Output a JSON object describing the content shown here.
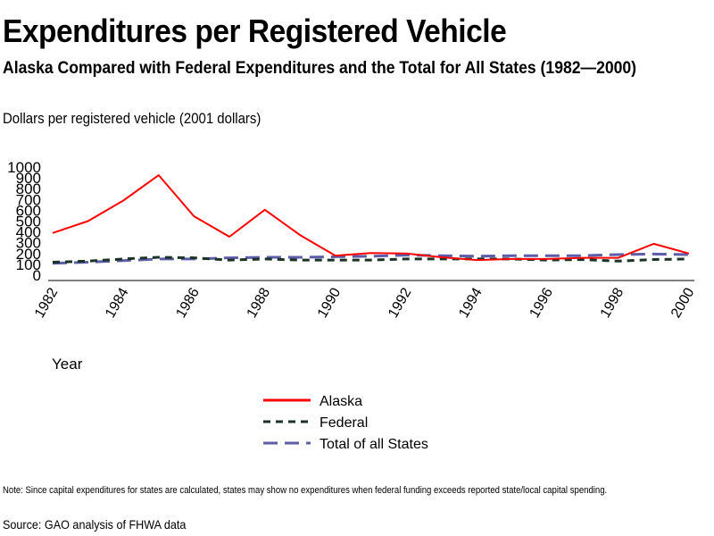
{
  "title": "Expenditures per Registered Vehicle",
  "subtitle": "Alaska Compared with Federal Expenditures and the Total for All States (1982—2000)",
  "y_axis_caption": "Dollars per registered vehicle (2001 dollars)",
  "x_axis_caption": "Year",
  "note": "Note:  Since capital expenditures for states are calculated, states may show no expenditures when federal funding exceeds reported state/local capital spending.",
  "source": "Source: GAO analysis of FHWA data",
  "chart_data": {
    "type": "line",
    "title": "Expenditures per Registered Vehicle",
    "xlabel": "Year",
    "ylabel": "Dollars per registered vehicle (2001 dollars)",
    "x": [
      1982,
      1983,
      1984,
      1985,
      1986,
      1987,
      1988,
      1989,
      1990,
      1991,
      1992,
      1993,
      1994,
      1995,
      1996,
      1997,
      1998,
      1999,
      2000
    ],
    "xticks": [
      "1982",
      "1984",
      "1986",
      "1988",
      "1990",
      "1992",
      "1994",
      "1996",
      "1998",
      "2000"
    ],
    "yticks": [
      "0",
      "100",
      "200",
      "300",
      "400",
      "500",
      "600",
      "700",
      "800",
      "900",
      "1000"
    ],
    "ylim": [
      0,
      1000
    ],
    "grid": false,
    "legend_position": "bottom-center",
    "series": [
      {
        "name": "Alaska",
        "color": "#ff0000",
        "dash": "solid",
        "values": [
          390,
          500,
          690,
          925,
          545,
          355,
          605,
          370,
          180,
          205,
          200,
          165,
          140,
          150,
          150,
          160,
          160,
          290,
          200
        ]
      },
      {
        "name": "Federal",
        "color": "#1a3326",
        "dash": "short-dash",
        "values": [
          120,
          130,
          150,
          165,
          160,
          140,
          150,
          140,
          140,
          140,
          150,
          150,
          150,
          150,
          140,
          145,
          130,
          145,
          150
        ]
      },
      {
        "name": "Total of all States",
        "color": "#5c5ca8",
        "dash": "long-dash",
        "values": [
          110,
          120,
          135,
          150,
          150,
          160,
          165,
          165,
          170,
          175,
          185,
          180,
          175,
          180,
          180,
          180,
          190,
          195,
          190
        ]
      }
    ]
  }
}
